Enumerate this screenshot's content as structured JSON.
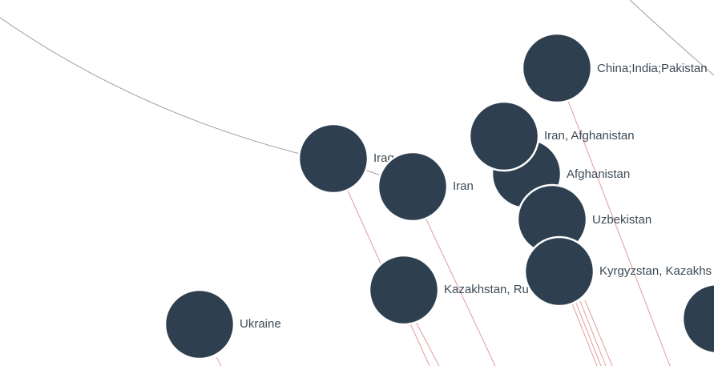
{
  "colors": {
    "background": "#ffffff",
    "node_fill": "#2e4050",
    "node_stroke": "#ffffff",
    "label_text": "#3d4a56",
    "edge_red": "#e49a9a",
    "edge_gray": "#9e9e9e"
  },
  "nodes": [
    {
      "id": "china-india-pakistan",
      "label": "China;India;Pakistan"
    },
    {
      "id": "iraq",
      "label": "Iraq"
    },
    {
      "id": "iran",
      "label": "Iran"
    },
    {
      "id": "afghanistan",
      "label": "Afghanistan"
    },
    {
      "id": "iran-afghanistan",
      "label": "Iran, Afghanistan"
    },
    {
      "id": "uzbekistan",
      "label": "Uzbekistan"
    },
    {
      "id": "kazakhstan-ru",
      "label": "Kazakhstan, Ru"
    },
    {
      "id": "kyrgyzstan-kazakhs",
      "label": "Kyrgyzstan, Kazakhs"
    },
    {
      "id": "ukraine",
      "label": "Ukraine"
    },
    {
      "id": "offscreen-right",
      "label": ""
    }
  ]
}
